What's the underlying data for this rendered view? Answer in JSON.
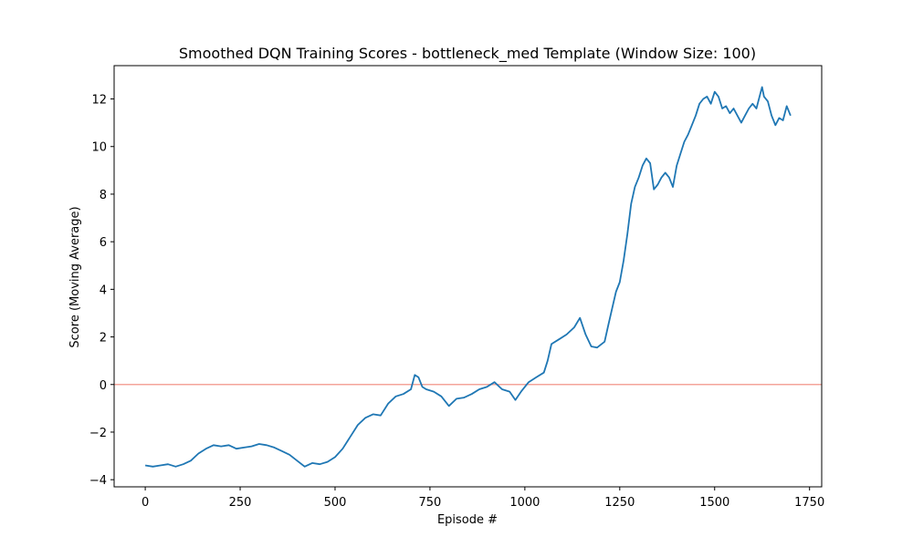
{
  "chart_data": {
    "type": "line",
    "title": "Smoothed DQN Training Scores - bottleneck_med Template (Window Size: 100)",
    "xlabel": "Episode #",
    "ylabel": "Score (Moving Average)",
    "xlim": [
      -82,
      1782
    ],
    "ylim": [
      -4.3,
      13.4
    ],
    "xticks": [
      0,
      250,
      500,
      750,
      1000,
      1250,
      1500,
      1750
    ],
    "yticks": [
      -4,
      -2,
      0,
      2,
      4,
      6,
      8,
      10,
      12
    ],
    "grid": false,
    "reference_line": {
      "y": 0,
      "color": "#f4a49a"
    },
    "series": [
      {
        "color": "#1f77b4",
        "points": [
          [
            0,
            -3.4
          ],
          [
            20,
            -3.45
          ],
          [
            40,
            -3.4
          ],
          [
            60,
            -3.35
          ],
          [
            80,
            -3.45
          ],
          [
            100,
            -3.35
          ],
          [
            120,
            -3.2
          ],
          [
            140,
            -2.9
          ],
          [
            160,
            -2.7
          ],
          [
            180,
            -2.55
          ],
          [
            200,
            -2.6
          ],
          [
            220,
            -2.55
          ],
          [
            240,
            -2.7
          ],
          [
            260,
            -2.65
          ],
          [
            280,
            -2.6
          ],
          [
            300,
            -2.5
          ],
          [
            320,
            -2.55
          ],
          [
            340,
            -2.65
          ],
          [
            360,
            -2.8
          ],
          [
            380,
            -2.95
          ],
          [
            400,
            -3.2
          ],
          [
            420,
            -3.45
          ],
          [
            440,
            -3.3
          ],
          [
            460,
            -3.35
          ],
          [
            480,
            -3.25
          ],
          [
            500,
            -3.05
          ],
          [
            520,
            -2.7
          ],
          [
            540,
            -2.2
          ],
          [
            560,
            -1.7
          ],
          [
            580,
            -1.4
          ],
          [
            600,
            -1.25
          ],
          [
            620,
            -1.3
          ],
          [
            640,
            -0.8
          ],
          [
            660,
            -0.5
          ],
          [
            680,
            -0.4
          ],
          [
            700,
            -0.2
          ],
          [
            710,
            0.4
          ],
          [
            720,
            0.3
          ],
          [
            730,
            -0.1
          ],
          [
            740,
            -0.2
          ],
          [
            760,
            -0.3
          ],
          [
            780,
            -0.5
          ],
          [
            800,
            -0.9
          ],
          [
            820,
            -0.6
          ],
          [
            840,
            -0.55
          ],
          [
            860,
            -0.4
          ],
          [
            880,
            -0.2
          ],
          [
            900,
            -0.1
          ],
          [
            920,
            0.1
          ],
          [
            940,
            -0.2
          ],
          [
            960,
            -0.3
          ],
          [
            975,
            -0.65
          ],
          [
            990,
            -0.3
          ],
          [
            1010,
            0.1
          ],
          [
            1030,
            0.3
          ],
          [
            1050,
            0.5
          ],
          [
            1060,
            1.0
          ],
          [
            1070,
            1.7
          ],
          [
            1090,
            1.9
          ],
          [
            1110,
            2.1
          ],
          [
            1130,
            2.4
          ],
          [
            1145,
            2.8
          ],
          [
            1160,
            2.1
          ],
          [
            1175,
            1.6
          ],
          [
            1190,
            1.55
          ],
          [
            1210,
            1.8
          ],
          [
            1220,
            2.5
          ],
          [
            1230,
            3.2
          ],
          [
            1240,
            3.9
          ],
          [
            1250,
            4.3
          ],
          [
            1260,
            5.2
          ],
          [
            1270,
            6.3
          ],
          [
            1280,
            7.6
          ],
          [
            1290,
            8.3
          ],
          [
            1300,
            8.7
          ],
          [
            1310,
            9.2
          ],
          [
            1320,
            9.5
          ],
          [
            1330,
            9.3
          ],
          [
            1340,
            8.2
          ],
          [
            1350,
            8.4
          ],
          [
            1360,
            8.7
          ],
          [
            1370,
            8.9
          ],
          [
            1380,
            8.7
          ],
          [
            1390,
            8.3
          ],
          [
            1400,
            9.2
          ],
          [
            1410,
            9.7
          ],
          [
            1420,
            10.2
          ],
          [
            1430,
            10.5
          ],
          [
            1440,
            10.9
          ],
          [
            1450,
            11.3
          ],
          [
            1460,
            11.8
          ],
          [
            1470,
            12.0
          ],
          [
            1480,
            12.1
          ],
          [
            1490,
            11.8
          ],
          [
            1500,
            12.3
          ],
          [
            1510,
            12.1
          ],
          [
            1520,
            11.6
          ],
          [
            1530,
            11.7
          ],
          [
            1540,
            11.4
          ],
          [
            1550,
            11.6
          ],
          [
            1560,
            11.3
          ],
          [
            1570,
            11.0
          ],
          [
            1580,
            11.3
          ],
          [
            1590,
            11.6
          ],
          [
            1600,
            11.8
          ],
          [
            1610,
            11.6
          ],
          [
            1620,
            12.2
          ],
          [
            1625,
            12.5
          ],
          [
            1630,
            12.1
          ],
          [
            1640,
            11.9
          ],
          [
            1650,
            11.3
          ],
          [
            1660,
            10.9
          ],
          [
            1670,
            11.2
          ],
          [
            1680,
            11.1
          ],
          [
            1690,
            11.7
          ],
          [
            1700,
            11.3
          ]
        ]
      }
    ]
  }
}
